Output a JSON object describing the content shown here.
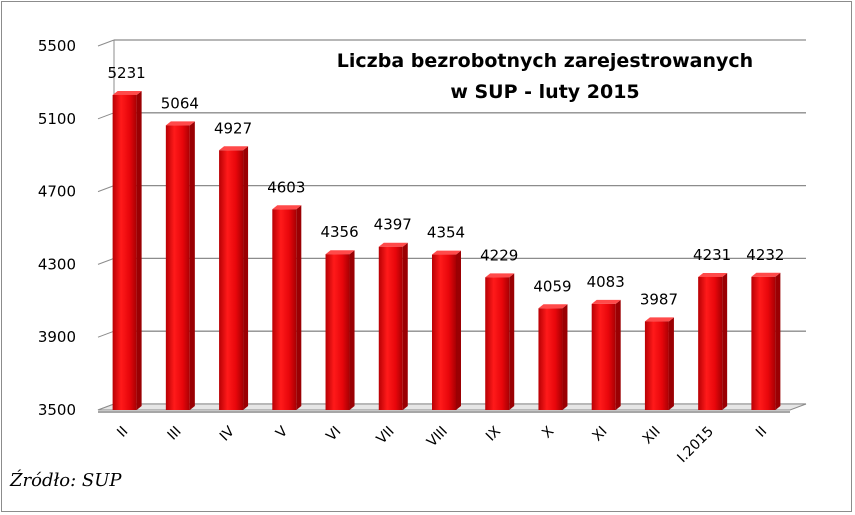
{
  "chart_data": {
    "type": "bar",
    "title_lines": [
      "Liczba bezrobotnych zarejestrowanych",
      "w SUP - luty 2015"
    ],
    "categories": [
      "II",
      "III",
      "IV",
      "V",
      "VI",
      "VII",
      "VIII",
      "IX",
      "X",
      "XI",
      "XII",
      "I.2015",
      "II"
    ],
    "values": [
      5231,
      5064,
      4927,
      4603,
      4356,
      4397,
      4354,
      4229,
      4059,
      4083,
      3987,
      4231,
      4232
    ],
    "y_ticks": [
      3500,
      3900,
      4300,
      4700,
      5100,
      5500
    ],
    "ylim": [
      3500,
      5500
    ],
    "grid": true,
    "bar_color": "#e8060b",
    "legend": "none"
  },
  "source_note": "Źródło: SUP"
}
